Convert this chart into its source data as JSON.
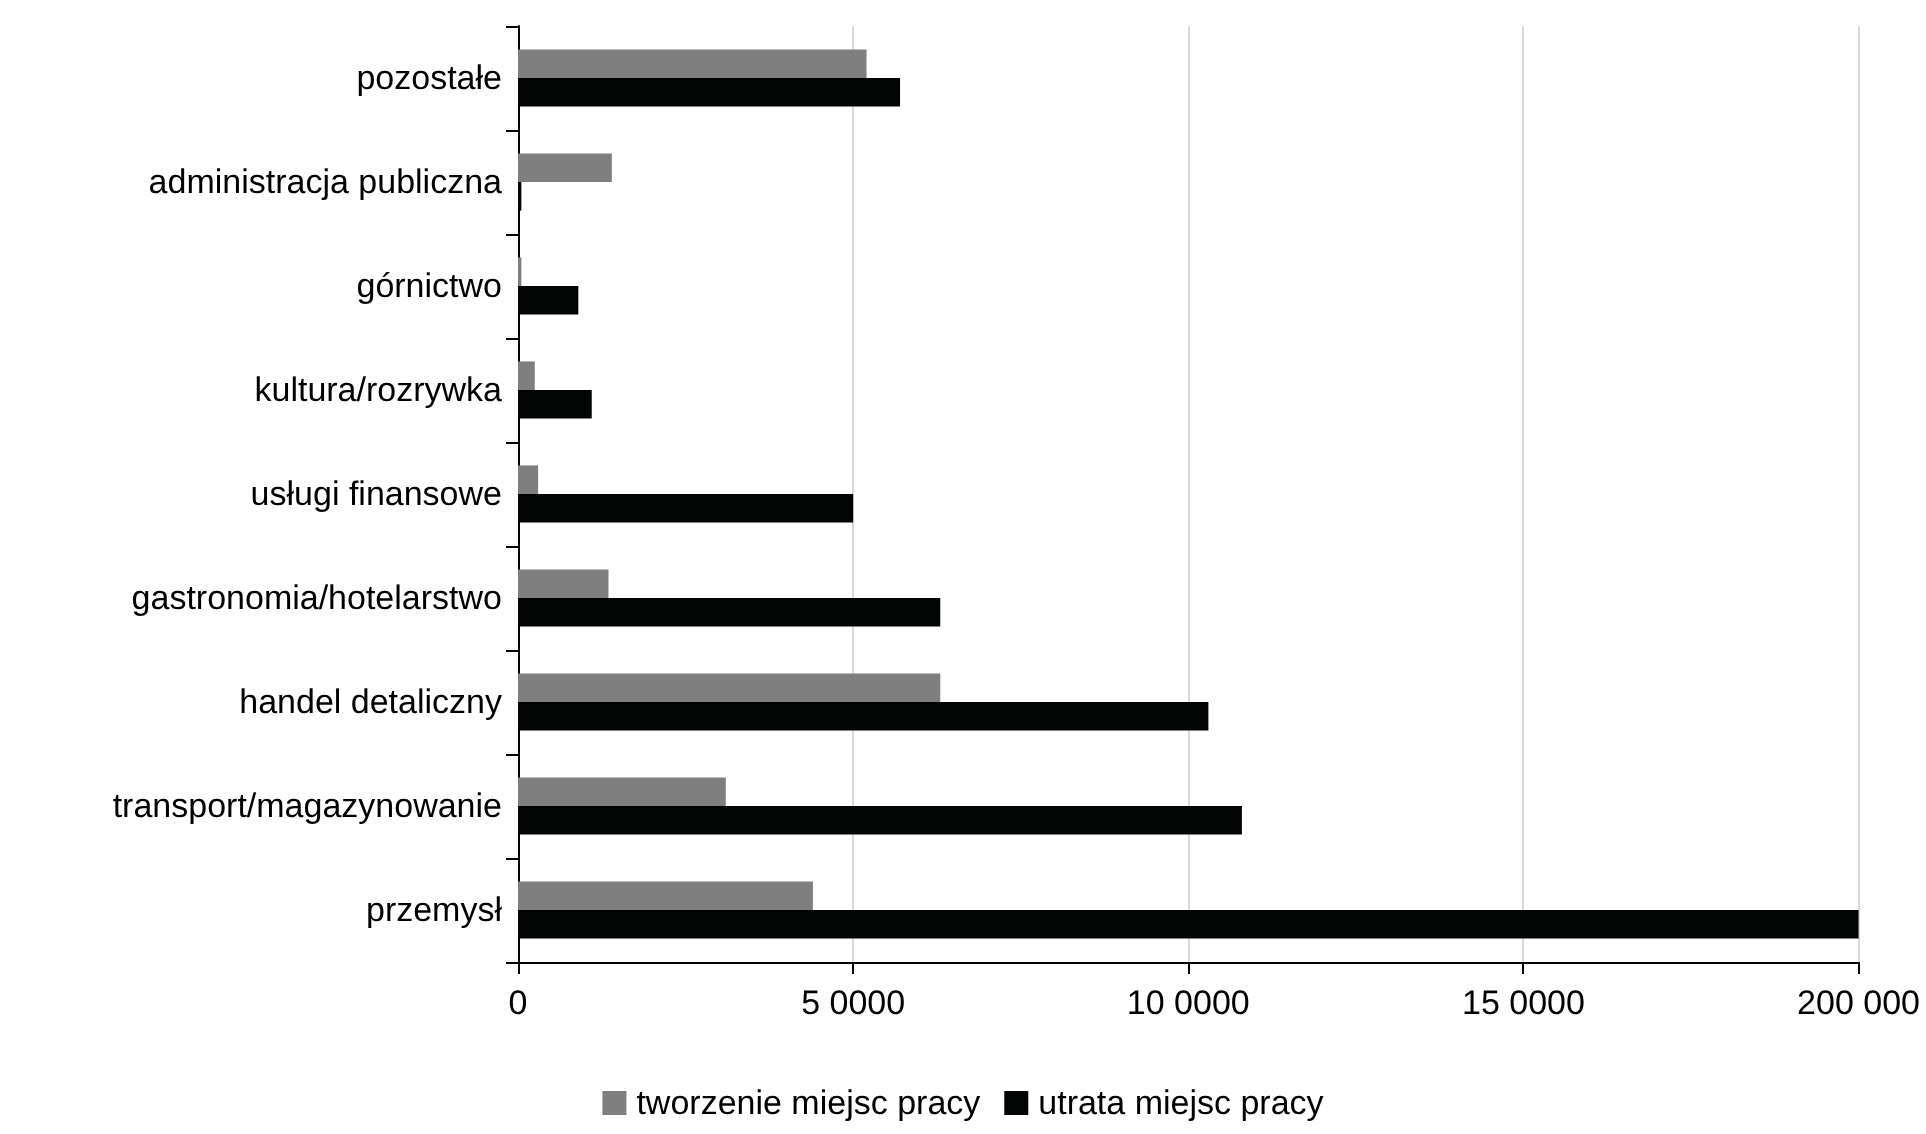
{
  "chart_data": {
    "type": "bar",
    "orientation": "horizontal",
    "categories": [
      "pozostałe",
      "administracja publiczna",
      "górnictwo",
      "kultura/rozrywka",
      "usługi finansowe",
      "gastronomia/hotelarstwo",
      "handel detaliczny",
      "transport/magazynowanie",
      "przemysł"
    ],
    "series": [
      {
        "name": "tworzenie miejsc pracy",
        "color": "#7f7f7f",
        "values": [
          52000,
          14000,
          500,
          2500,
          3000,
          13500,
          63000,
          31000,
          44000
        ]
      },
      {
        "name": "utrata miejsc pracy",
        "color": "#030505",
        "values": [
          57000,
          500,
          9000,
          11000,
          50000,
          63000,
          103000,
          108000,
          200000
        ]
      }
    ],
    "xlim": [
      0,
      200000
    ],
    "xticks": [
      0,
      {
        "value": 50000,
        "label": "5 0000"
      },
      {
        "value": 100000,
        "label": "10 0000"
      },
      {
        "value": 150000,
        "label": "15 0000"
      },
      {
        "value": 200000,
        "label": "200 000"
      }
    ],
    "grid": "x",
    "legend": "bottom"
  }
}
